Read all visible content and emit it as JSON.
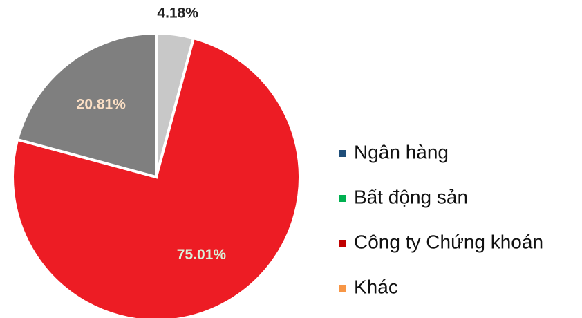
{
  "chart_data": {
    "type": "pie",
    "legend": [
      {
        "name": "Ngân hàng",
        "color": "#1f4e79"
      },
      {
        "name": "Bất động sản",
        "color": "#00b050"
      },
      {
        "name": "Công ty Chứng khoán",
        "color": "#c00000"
      },
      {
        "name": "Khác",
        "color": "#f79646"
      }
    ],
    "values": [
      4.18,
      75.01,
      20.81
    ],
    "value_labels": [
      "4.18%",
      "75.01%",
      "20.81%"
    ],
    "colors": [
      "#c8c8c8",
      "#ed1c24",
      "#7f7f7f"
    ],
    "label_colors": [
      "#222222",
      "#d9f2d9",
      "#fde0c5"
    ]
  }
}
